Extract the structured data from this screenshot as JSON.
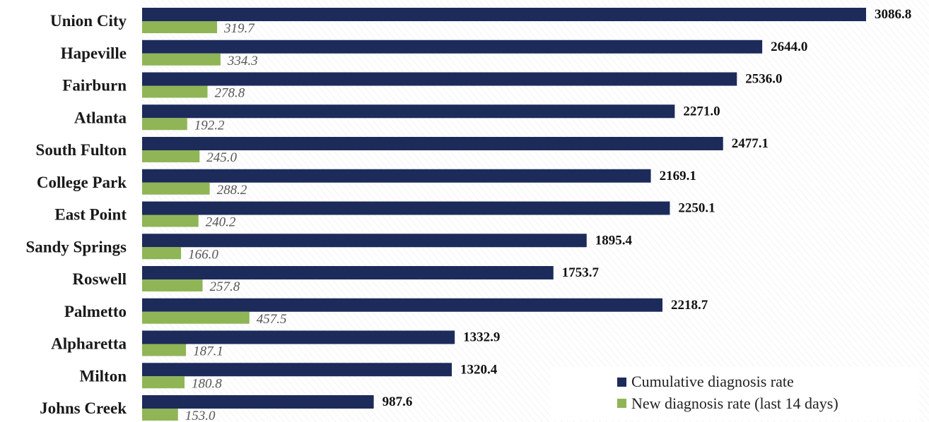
{
  "chart_data": {
    "type": "bar",
    "orientation": "horizontal",
    "categories": [
      "Union City",
      "Hapeville",
      "Fairburn",
      "Atlanta",
      "South Fulton",
      "College Park",
      "East Point",
      "Sandy Springs",
      "Roswell",
      "Palmetto",
      "Alpharetta",
      "Milton",
      "Johns Creek"
    ],
    "series": [
      {
        "name": "Cumulative diagnosis rate",
        "color": "#1c2b5a",
        "values": [
          3086.8,
          2644.0,
          2536.0,
          2271.0,
          2477.1,
          2169.1,
          2250.1,
          1895.4,
          1753.7,
          2218.7,
          1332.9,
          1320.4,
          987.6
        ],
        "labels": [
          "3086.8",
          "2644.0",
          "2536.0",
          "2271.0",
          "2477.1",
          "2169.1",
          "2250.1",
          "1895.4",
          "1753.7",
          "2218.7",
          "1332.9",
          "1320.4",
          "987.6"
        ]
      },
      {
        "name": "New diagnosis rate (last 14 days)",
        "color": "#8fb556",
        "values": [
          319.7,
          334.3,
          278.8,
          192.2,
          245.0,
          288.2,
          240.2,
          166.0,
          257.8,
          457.5,
          187.1,
          180.8,
          153.0
        ],
        "labels": [
          "319.7",
          "334.3",
          "278.8",
          "192.2",
          "245.0",
          "288.2",
          "240.2",
          "166.0",
          "257.8",
          "457.5",
          "187.1",
          "180.8",
          "153.0"
        ]
      }
    ],
    "xlim": [
      0,
      3086.8
    ],
    "legend": "bottom-right",
    "grid": false
  }
}
